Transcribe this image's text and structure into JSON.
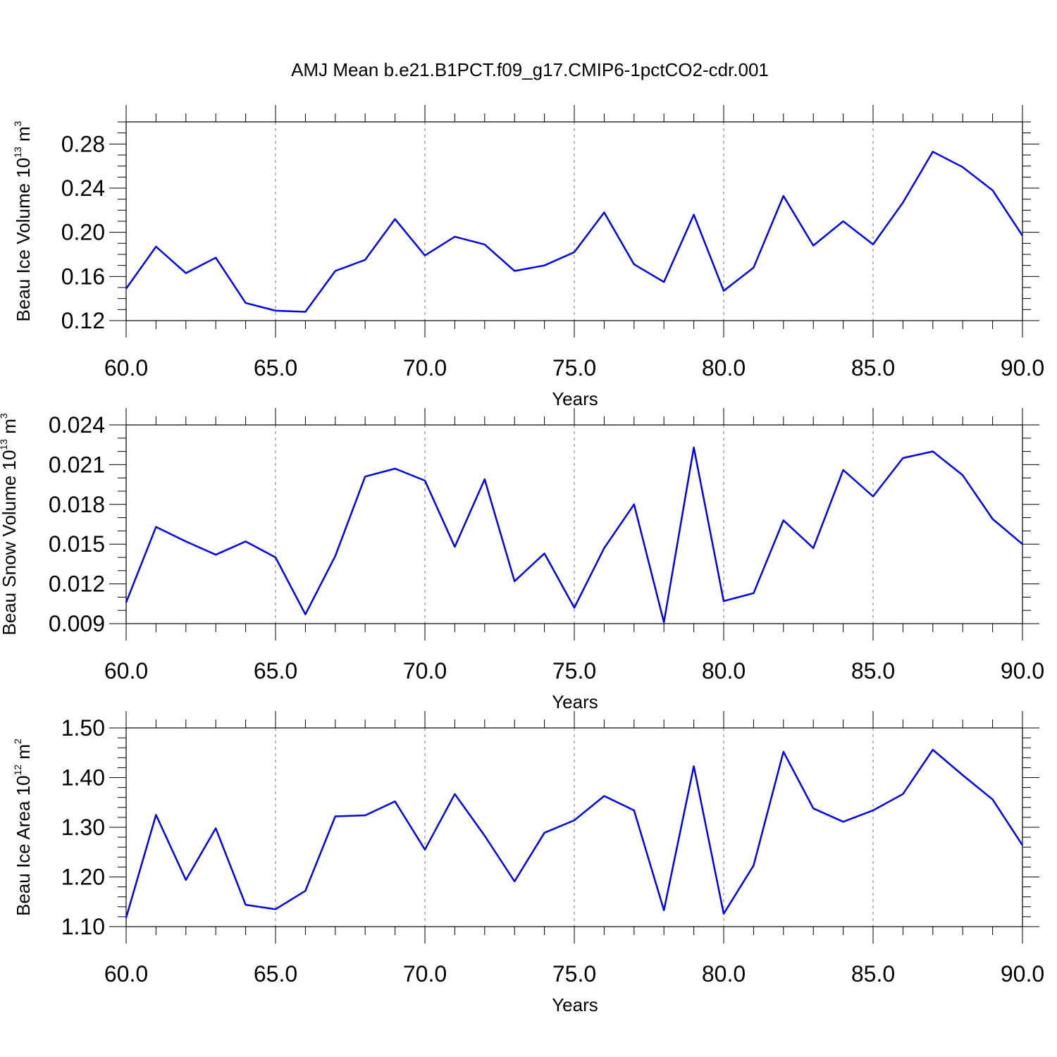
{
  "title": "AMJ Mean b.e21.B1PCT.f09_g17.CMIP6-1pctCO2-cdr.001",
  "series_color": "#0000ee",
  "chart_data": [
    {
      "type": "line",
      "ylabel": {
        "main": "Beau Ice Volume 10",
        "sup": "13",
        "unit": " m",
        "unit_sup": "3"
      },
      "xlabel": "Years",
      "xlim": [
        60,
        90
      ],
      "ylim": [
        0.12,
        0.3
      ],
      "xticks": [
        60,
        65,
        70,
        75,
        80,
        85,
        90
      ],
      "xtick_labels": [
        "60.0",
        "65.0",
        "70.0",
        "75.0",
        "80.0",
        "85.0",
        "90.0"
      ],
      "yticks": [
        0.12,
        0.16,
        0.2,
        0.24,
        0.28
      ],
      "ytick_labels": [
        "0.12",
        "0.16",
        "0.20",
        "0.24",
        "0.28"
      ],
      "y_minor_step": 0.01,
      "grid": "x-dashed",
      "x": [
        60,
        61,
        62,
        63,
        64,
        65,
        66,
        67,
        68,
        69,
        70,
        71,
        72,
        73,
        74,
        75,
        76,
        77,
        78,
        79,
        80,
        81,
        82,
        83,
        84,
        85,
        86,
        87,
        88,
        89,
        90
      ],
      "values": [
        0.149,
        0.187,
        0.163,
        0.177,
        0.136,
        0.129,
        0.128,
        0.165,
        0.175,
        0.212,
        0.179,
        0.196,
        0.189,
        0.165,
        0.17,
        0.182,
        0.218,
        0.171,
        0.155,
        0.216,
        0.147,
        0.168,
        0.233,
        0.188,
        0.21,
        0.189,
        0.227,
        0.273,
        0.259,
        0.238,
        0.197
      ]
    },
    {
      "type": "line",
      "ylabel": {
        "main": "Beau Snow Volume 10",
        "sup": "13",
        "unit": " m",
        "unit_sup": "3"
      },
      "xlabel": "Years",
      "xlim": [
        60,
        90
      ],
      "ylim": [
        0.009,
        0.024
      ],
      "xticks": [
        60,
        65,
        70,
        75,
        80,
        85,
        90
      ],
      "xtick_labels": [
        "60.0",
        "65.0",
        "70.0",
        "75.0",
        "80.0",
        "85.0",
        "90.0"
      ],
      "yticks": [
        0.009,
        0.012,
        0.015,
        0.018,
        0.021,
        0.024
      ],
      "ytick_labels": [
        "0.009",
        "0.012",
        "0.015",
        "0.018",
        "0.021",
        "0.024"
      ],
      "y_minor_step": 0.001,
      "grid": "x-dashed",
      "x": [
        60,
        61,
        62,
        63,
        64,
        65,
        66,
        67,
        68,
        69,
        70,
        71,
        72,
        73,
        74,
        75,
        76,
        77,
        78,
        79,
        80,
        81,
        82,
        83,
        84,
        85,
        86,
        87,
        88,
        89,
        90
      ],
      "values": [
        0.0106,
        0.0163,
        0.0152,
        0.0142,
        0.0152,
        0.014,
        0.0097,
        0.0141,
        0.0201,
        0.0207,
        0.0198,
        0.0148,
        0.0199,
        0.0122,
        0.0143,
        0.0102,
        0.0147,
        0.018,
        0.0091,
        0.0223,
        0.0107,
        0.0113,
        0.0168,
        0.0147,
        0.0206,
        0.0186,
        0.0215,
        0.022,
        0.0202,
        0.0169,
        0.015
      ]
    },
    {
      "type": "line",
      "ylabel": {
        "main": "Beau Ice Area 10",
        "sup": "12",
        "unit": " m",
        "unit_sup": "2"
      },
      "xlabel": "Years",
      "xlim": [
        60,
        90
      ],
      "ylim": [
        1.1,
        1.5
      ],
      "xticks": [
        60,
        65,
        70,
        75,
        80,
        85,
        90
      ],
      "xtick_labels": [
        "60.0",
        "65.0",
        "70.0",
        "75.0",
        "80.0",
        "85.0",
        "90.0"
      ],
      "yticks": [
        1.1,
        1.2,
        1.3,
        1.4,
        1.5
      ],
      "ytick_labels": [
        "1.10",
        "1.20",
        "1.30",
        "1.40",
        "1.50"
      ],
      "y_minor_step": 0.02,
      "grid": "x-dashed",
      "x": [
        60,
        61,
        62,
        63,
        64,
        65,
        66,
        67,
        68,
        69,
        70,
        71,
        72,
        73,
        74,
        75,
        76,
        77,
        78,
        79,
        80,
        81,
        82,
        83,
        84,
        85,
        86,
        87,
        88,
        89,
        90
      ],
      "values": [
        1.118,
        1.325,
        1.194,
        1.298,
        1.144,
        1.135,
        1.172,
        1.322,
        1.324,
        1.352,
        1.255,
        1.367,
        1.283,
        1.191,
        1.289,
        1.314,
        1.363,
        1.334,
        1.133,
        1.423,
        1.126,
        1.223,
        1.452,
        1.338,
        1.311,
        1.334,
        1.367,
        1.456,
        1.405,
        1.356,
        1.264
      ]
    }
  ]
}
